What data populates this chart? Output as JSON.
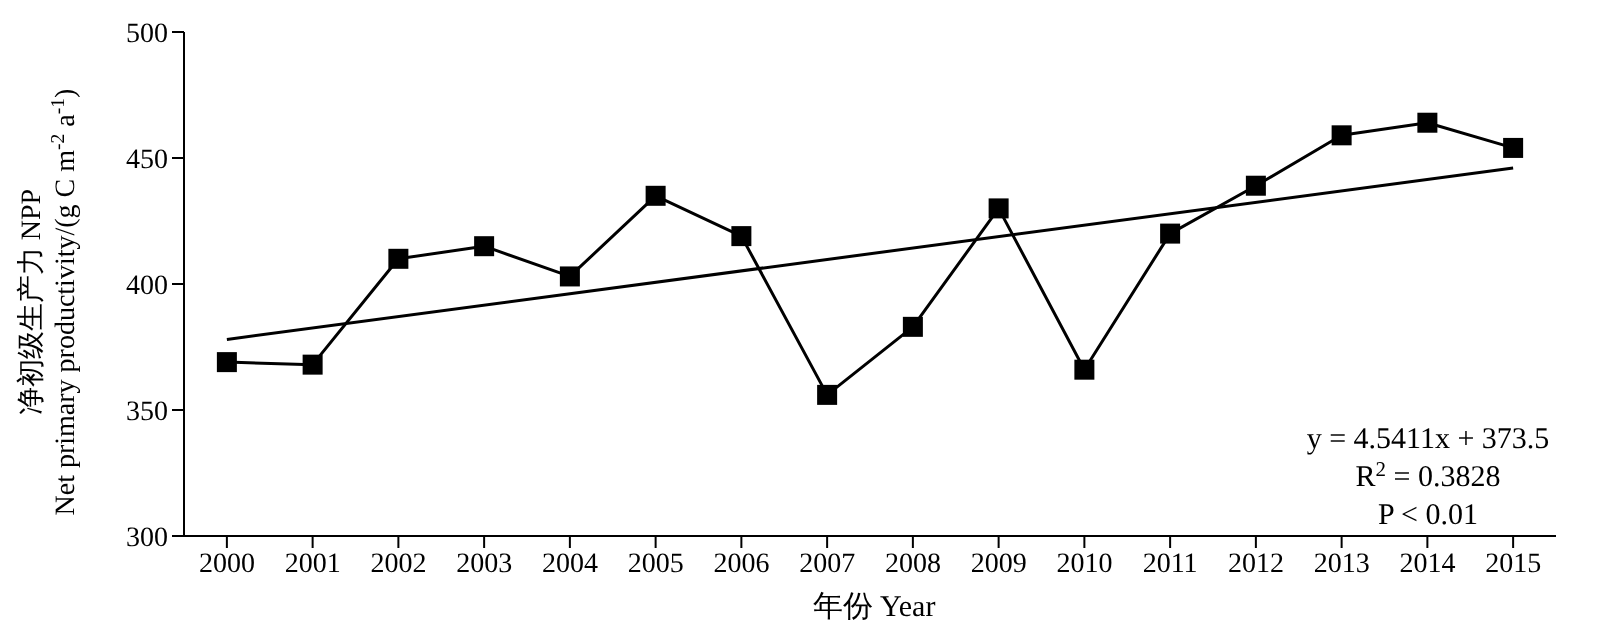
{
  "chart_data": {
    "type": "line",
    "xlabel": "年份 Year",
    "ylabel": "净初级生产力 NPP\nNet primary productivity/(g C m$^{-2}$ a$^{-1}$)",
    "x": [
      2000,
      2001,
      2002,
      2003,
      2004,
      2005,
      2006,
      2007,
      2008,
      2009,
      2010,
      2011,
      2012,
      2013,
      2014,
      2015
    ],
    "xlim": [
      1999.5,
      2015.5
    ],
    "xticks": [
      2000,
      2001,
      2002,
      2003,
      2004,
      2005,
      2006,
      2007,
      2008,
      2009,
      2010,
      2011,
      2012,
      2013,
      2014,
      2015
    ],
    "ylim": [
      300,
      500
    ],
    "yticks": [
      300,
      350,
      400,
      450,
      500
    ],
    "series": [
      {
        "color": "#000000",
        "marker": "square",
        "values": [
          369,
          368,
          410,
          415,
          403,
          435,
          419,
          356,
          383,
          430,
          366,
          420,
          439,
          459,
          464,
          454
        ]
      },
      {
        "type": "line",
        "color": "#000000",
        "marker": "none",
        "x": [
          2000,
          2015
        ],
        "values": [
          378,
          446
        ]
      }
    ],
    "annotations": [
      "y = 4.5411x + 373.5",
      "R$^{2}$ = 0.3828",
      "P < 0.01"
    ]
  }
}
